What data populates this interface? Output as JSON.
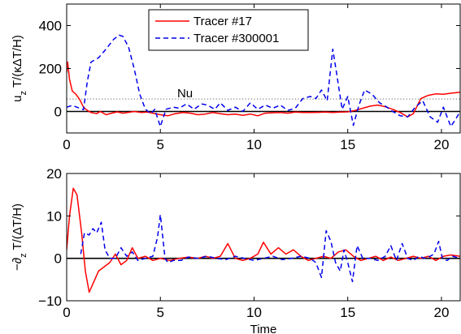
{
  "chart_data": [
    {
      "type": "line",
      "title": "",
      "xlabel": "",
      "ylabel_main": "u",
      "ylabel_sub": "z",
      "ylabel_rest": " T/(κΔT/H)",
      "xlim": [
        0,
        21
      ],
      "ylim": [
        -100,
        500
      ],
      "xticks": [
        "0",
        "5",
        "10",
        "15",
        "20"
      ],
      "yticks": [
        "0",
        "200",
        "400"
      ],
      "legend": {
        "position": "top-center"
      },
      "annotation": {
        "text": "Nu",
        "x": 5.9,
        "y": 85
      },
      "reference_lines": [
        {
          "name": "Nu",
          "y": 58,
          "style": "dotted",
          "color": "#666666"
        },
        {
          "name": "zero",
          "y": 0,
          "style": "solid",
          "color": "#000000"
        }
      ],
      "series": [
        {
          "name": "Tracer #17",
          "color": "#ff0000",
          "dash": "solid",
          "points": [
            [
              0,
              180
            ],
            [
              0.05,
              230
            ],
            [
              0.15,
              150
            ],
            [
              0.3,
              95
            ],
            [
              0.5,
              80
            ],
            [
              0.7,
              55
            ],
            [
              0.9,
              20
            ],
            [
              1.1,
              5
            ],
            [
              1.3,
              -5
            ],
            [
              1.6,
              -10
            ],
            [
              1.8,
              0
            ],
            [
              2.1,
              -15
            ],
            [
              2.4,
              -8
            ],
            [
              2.7,
              -2
            ],
            [
              3.0,
              -8
            ],
            [
              3.3,
              -4
            ],
            [
              3.6,
              0
            ],
            [
              4.0,
              -5
            ],
            [
              4.3,
              -3
            ],
            [
              4.6,
              -8
            ],
            [
              5.0,
              -15
            ],
            [
              5.4,
              -20
            ],
            [
              5.8,
              -10
            ],
            [
              6.2,
              -5
            ],
            [
              6.6,
              -8
            ],
            [
              7.0,
              -15
            ],
            [
              7.4,
              -12
            ],
            [
              7.8,
              -5
            ],
            [
              8.2,
              -10
            ],
            [
              8.6,
              -15
            ],
            [
              9.0,
              -12
            ],
            [
              9.4,
              -18
            ],
            [
              9.8,
              -12
            ],
            [
              10.2,
              -20
            ],
            [
              10.6,
              -8
            ],
            [
              11.0,
              -6
            ],
            [
              11.4,
              -5
            ],
            [
              11.8,
              -8
            ],
            [
              12.2,
              -3
            ],
            [
              12.6,
              -5
            ],
            [
              13.0,
              -5
            ],
            [
              13.4,
              -4
            ],
            [
              13.8,
              -3
            ],
            [
              14.2,
              -5
            ],
            [
              14.6,
              -3
            ],
            [
              15.0,
              -2
            ],
            [
              15.4,
              5
            ],
            [
              15.8,
              15
            ],
            [
              16.2,
              25
            ],
            [
              16.6,
              30
            ],
            [
              17.0,
              22
            ],
            [
              17.4,
              10
            ],
            [
              17.8,
              -5
            ],
            [
              18.2,
              -25
            ],
            [
              18.5,
              -10
            ],
            [
              18.9,
              60
            ],
            [
              19.3,
              75
            ],
            [
              19.7,
              82
            ],
            [
              20.1,
              80
            ],
            [
              20.5,
              85
            ],
            [
              21,
              90
            ]
          ]
        },
        {
          "name": "Tracer #300001",
          "color": "#0000ee",
          "dash": "dashed",
          "points": [
            [
              0,
              20
            ],
            [
              0.3,
              28
            ],
            [
              0.6,
              18
            ],
            [
              0.9,
              8
            ],
            [
              1.1,
              140
            ],
            [
              1.3,
              230
            ],
            [
              1.7,
              250
            ],
            [
              2.1,
              290
            ],
            [
              2.5,
              335
            ],
            [
              2.8,
              355
            ],
            [
              3.0,
              350
            ],
            [
              3.3,
              300
            ],
            [
              3.6,
              200
            ],
            [
              3.9,
              80
            ],
            [
              4.2,
              10
            ],
            [
              4.5,
              -10
            ],
            [
              4.7,
              10
            ],
            [
              5.0,
              -70
            ],
            [
              5.3,
              10
            ],
            [
              5.7,
              20
            ],
            [
              6.0,
              15
            ],
            [
              6.4,
              35
            ],
            [
              6.8,
              10
            ],
            [
              7.2,
              35
            ],
            [
              7.5,
              30
            ],
            [
              7.9,
              10
            ],
            [
              8.2,
              40
            ],
            [
              8.6,
              5
            ],
            [
              9.0,
              20
            ],
            [
              9.4,
              0
            ],
            [
              9.8,
              40
            ],
            [
              10.2,
              10
            ],
            [
              10.6,
              30
            ],
            [
              11.0,
              15
            ],
            [
              11.4,
              30
            ],
            [
              11.8,
              5
            ],
            [
              12.2,
              15
            ],
            [
              12.6,
              60
            ],
            [
              13.0,
              70
            ],
            [
              13.3,
              60
            ],
            [
              13.6,
              100
            ],
            [
              13.9,
              50
            ],
            [
              14.2,
              290
            ],
            [
              14.4,
              180
            ],
            [
              14.7,
              10
            ],
            [
              15.0,
              70
            ],
            [
              15.3,
              -65
            ],
            [
              15.6,
              30
            ],
            [
              15.9,
              100
            ],
            [
              16.3,
              80
            ],
            [
              16.7,
              40
            ],
            [
              17.1,
              20
            ],
            [
              17.4,
              0
            ],
            [
              17.8,
              -20
            ],
            [
              18.2,
              -25
            ],
            [
              18.6,
              20
            ],
            [
              19.0,
              50
            ],
            [
              19.4,
              -25
            ],
            [
              19.8,
              -50
            ],
            [
              20.1,
              20
            ],
            [
              20.5,
              -70
            ],
            [
              20.8,
              -30
            ],
            [
              21,
              0
            ]
          ]
        }
      ]
    },
    {
      "type": "line",
      "title": "",
      "xlabel": "Time",
      "ylabel_main": "−∂",
      "ylabel_sub": "z",
      "ylabel_rest": " T/(ΔT/H)",
      "xlim": [
        0,
        21
      ],
      "ylim": [
        -10,
        20
      ],
      "xticks": [
        "0",
        "5",
        "10",
        "15",
        "20"
      ],
      "yticks": [
        "−10",
        "0",
        "10",
        "20"
      ],
      "reference_lines": [
        {
          "name": "zero",
          "y": 0,
          "style": "solid",
          "color": "#000000"
        }
      ],
      "series": [
        {
          "name": "Tracer #17",
          "color": "#ff0000",
          "dash": "solid",
          "points": [
            [
              0,
              2
            ],
            [
              0.15,
              10
            ],
            [
              0.35,
              16.5
            ],
            [
              0.55,
              15
            ],
            [
              0.8,
              6
            ],
            [
              1.0,
              -3
            ],
            [
              1.2,
              -8
            ],
            [
              1.4,
              -6
            ],
            [
              1.7,
              -3
            ],
            [
              2.0,
              -2
            ],
            [
              2.3,
              -1
            ],
            [
              2.6,
              1
            ],
            [
              2.9,
              -1.5
            ],
            [
              3.2,
              -0.5
            ],
            [
              3.5,
              2.5
            ],
            [
              3.8,
              0
            ],
            [
              4.2,
              0.5
            ],
            [
              4.6,
              -0.5
            ],
            [
              5.0,
              0
            ],
            [
              5.5,
              -0.5
            ],
            [
              6.0,
              0
            ],
            [
              6.5,
              0.3
            ],
            [
              7.0,
              0
            ],
            [
              7.4,
              0.5
            ],
            [
              7.8,
              0
            ],
            [
              8.2,
              0.5
            ],
            [
              8.6,
              3.5
            ],
            [
              9.0,
              0
            ],
            [
              9.4,
              -0.5
            ],
            [
              9.8,
              0
            ],
            [
              10.2,
              1
            ],
            [
              10.5,
              3.8
            ],
            [
              10.9,
              1
            ],
            [
              11.3,
              2.5
            ],
            [
              11.7,
              1
            ],
            [
              12.1,
              2
            ],
            [
              12.5,
              0.5
            ],
            [
              12.9,
              -0.5
            ],
            [
              13.3,
              0
            ],
            [
              13.7,
              0.5
            ],
            [
              14.1,
              0
            ],
            [
              14.5,
              1.5
            ],
            [
              14.9,
              2
            ],
            [
              15.3,
              0.5
            ],
            [
              15.7,
              -0.5
            ],
            [
              16.1,
              0
            ],
            [
              16.5,
              0.5
            ],
            [
              16.9,
              -0.5
            ],
            [
              17.3,
              0.3
            ],
            [
              17.7,
              -0.5
            ],
            [
              18.1,
              0
            ],
            [
              18.5,
              0.5
            ],
            [
              18.9,
              0
            ],
            [
              19.3,
              0.5
            ],
            [
              19.7,
              -0.5
            ],
            [
              20.1,
              0.5
            ],
            [
              20.5,
              0.8
            ],
            [
              21,
              0.5
            ]
          ]
        },
        {
          "name": "Tracer #300001",
          "color": "#0000ee",
          "dash": "dashed",
          "points": [
            [
              0.75,
              1
            ],
            [
              0.95,
              6
            ],
            [
              1.2,
              5.5
            ],
            [
              1.4,
              7
            ],
            [
              1.6,
              6
            ],
            [
              1.85,
              8.5
            ],
            [
              2.05,
              2
            ],
            [
              2.3,
              0
            ],
            [
              2.6,
              0
            ],
            [
              2.9,
              2.5
            ],
            [
              3.2,
              0.5
            ],
            [
              3.5,
              1.5
            ],
            [
              3.8,
              -0.5
            ],
            [
              4.2,
              0
            ],
            [
              4.6,
              0.5
            ],
            [
              4.85,
              5
            ],
            [
              5.0,
              10.3
            ],
            [
              5.25,
              0
            ],
            [
              5.4,
              -1
            ],
            [
              5.7,
              -0.5
            ],
            [
              6.1,
              -0.5
            ],
            [
              6.5,
              0.3
            ],
            [
              7.0,
              0
            ],
            [
              7.5,
              0.5
            ],
            [
              8.0,
              0
            ],
            [
              8.5,
              -0.3
            ],
            [
              9.0,
              0.5
            ],
            [
              9.5,
              0
            ],
            [
              10.0,
              -0.5
            ],
            [
              10.5,
              0
            ],
            [
              11.0,
              0.5
            ],
            [
              11.5,
              -0.3
            ],
            [
              12.0,
              0
            ],
            [
              12.5,
              0.5
            ],
            [
              13.0,
              0
            ],
            [
              13.3,
              -1
            ],
            [
              13.6,
              -4.5
            ],
            [
              13.85,
              6.5
            ],
            [
              14.1,
              4
            ],
            [
              14.35,
              -1
            ],
            [
              14.6,
              -3
            ],
            [
              14.8,
              2
            ],
            [
              15.0,
              -1
            ],
            [
              15.25,
              -5.5
            ],
            [
              15.5,
              3
            ],
            [
              15.8,
              0
            ],
            [
              16.2,
              0
            ],
            [
              16.6,
              -0.5
            ],
            [
              17.0,
              0.5
            ],
            [
              17.3,
              3
            ],
            [
              17.6,
              -0.5
            ],
            [
              17.9,
              3.5
            ],
            [
              18.2,
              0
            ],
            [
              18.5,
              -0.5
            ],
            [
              18.8,
              0.5
            ],
            [
              19.1,
              0
            ],
            [
              19.4,
              0.5
            ],
            [
              19.6,
              1
            ],
            [
              19.85,
              4
            ],
            [
              20.05,
              0
            ],
            [
              20.3,
              -0.5
            ],
            [
              20.6,
              0.5
            ],
            [
              21,
              0
            ]
          ]
        }
      ]
    }
  ]
}
